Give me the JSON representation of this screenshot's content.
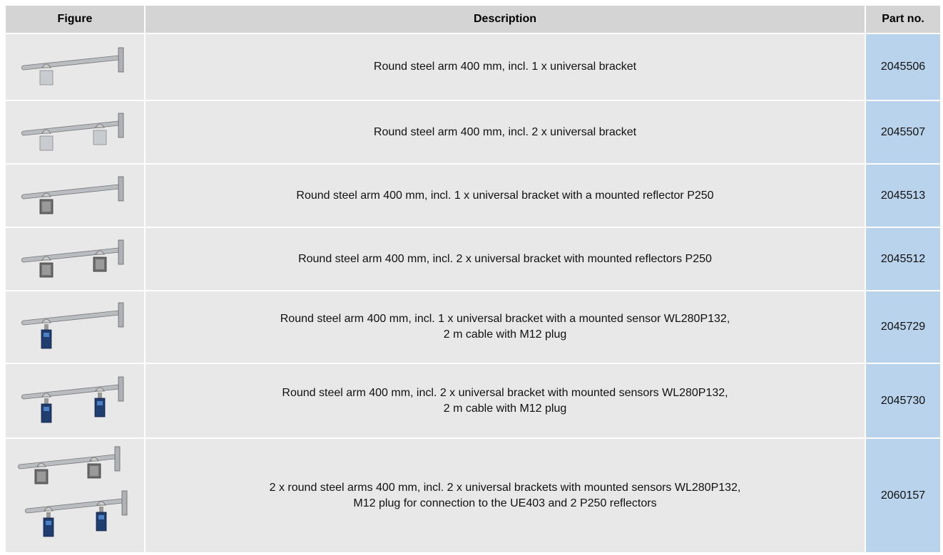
{
  "header": [
    "Figure",
    "Description",
    "Part no."
  ],
  "rows": [
    {
      "description": [
        "Round steel arm 400 mm, incl. 1 x universal bracket"
      ],
      "part_no": "2045506"
    },
    {
      "description": [
        "Round steel arm 400 mm, incl. 2 x universal bracket"
      ],
      "part_no": "2045507"
    },
    {
      "description": [
        "Round steel arm 400 mm, incl. 1 x universal bracket with a mounted reflector P250"
      ],
      "part_no": "2045513"
    },
    {
      "description": [
        "Round steel arm 400 mm, incl. 2 x universal bracket with mounted reflectors P250"
      ],
      "part_no": "2045512"
    },
    {
      "description": [
        "Round steel arm 400 mm, incl. 1 x universal bracket with a mounted sensor WL280P132,",
        "2 m cable with M12 plug"
      ],
      "part_no": "2045729"
    },
    {
      "description": [
        "Round steel arm 400 mm, incl. 2 x universal bracket with mounted sensors WL280P132,",
        "2 m cable with M12 plug"
      ],
      "part_no": "2045730"
    },
    {
      "description": [
        "2 x round steel arms 400 mm, incl. 2 x universal brackets with mounted sensors WL280P132,",
        "M12 plug for connection to the UE403 and 2 P250 reflectors"
      ],
      "part_no": "2060157"
    }
  ]
}
